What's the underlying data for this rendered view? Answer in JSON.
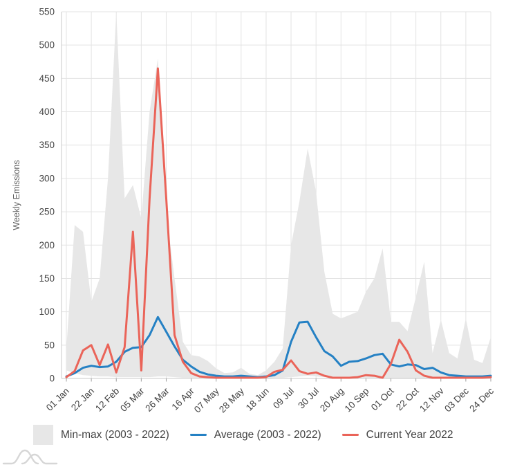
{
  "chart_data": {
    "type": "area",
    "title": "",
    "xlabel": "",
    "ylabel": "Weekly Emissions",
    "ylim": [
      0,
      550
    ],
    "y_ticks": [
      0,
      50,
      100,
      150,
      200,
      250,
      300,
      350,
      400,
      450,
      500,
      550
    ],
    "x_tick_labels": [
      "01 Jan",
      "22 Jan",
      "12 Feb",
      "05 Mar",
      "26 Mar",
      "16 Apr",
      "07 May",
      "28 May",
      "18 Jun",
      "09 Jul",
      "30 Jul",
      "20 Aug",
      "10 Sep",
      "01 Oct",
      "22 Oct",
      "12 Nov",
      "03 Dec",
      "24 Dec"
    ],
    "x_tick_every_weeks": 3,
    "n_weeks": 52,
    "grid": true,
    "legend_position": "bottom",
    "series": [
      {
        "name": "Min-max (2003 - 2022)",
        "type": "band",
        "color": "#e7e7e7",
        "max": [
          45,
          230,
          220,
          115,
          150,
          300,
          550,
          270,
          290,
          240,
          400,
          480,
          250,
          150,
          55,
          35,
          33,
          26,
          15,
          8,
          9,
          16,
          7,
          5,
          12,
          25,
          45,
          200,
          265,
          345,
          280,
          160,
          97,
          90,
          95,
          100,
          130,
          150,
          195,
          85,
          85,
          71,
          122,
          175,
          38,
          88,
          38,
          30,
          90,
          28,
          23,
          62
        ],
        "min": [
          12,
          8,
          5,
          4,
          3,
          3,
          2,
          2,
          2,
          2,
          2,
          3,
          3,
          2,
          1,
          1,
          1,
          1,
          0,
          0,
          0,
          0,
          0,
          0,
          0,
          1,
          1,
          2,
          3,
          4,
          3,
          2,
          1,
          1,
          1,
          1,
          1,
          1,
          1,
          0,
          0,
          0,
          0,
          0,
          0,
          0,
          0,
          0,
          0,
          0,
          0,
          0
        ]
      },
      {
        "name": "Average (2003 - 2022)",
        "type": "line",
        "color": "#2581c4",
        "values": [
          3,
          8,
          16,
          19,
          17,
          18,
          25,
          40,
          46,
          47,
          65,
          92,
          70,
          48,
          28,
          18,
          10,
          6,
          4,
          3,
          3,
          4,
          3,
          2,
          3,
          5,
          12,
          55,
          84,
          85,
          62,
          41,
          33,
          19,
          25,
          26,
          30,
          35,
          37,
          21,
          18,
          21,
          20,
          14,
          16,
          9,
          5,
          4,
          3,
          3,
          3,
          4
        ]
      },
      {
        "name": "Current Year 2022",
        "type": "line",
        "color": "#ea6459",
        "values": [
          2,
          11,
          42,
          50,
          20,
          51,
          9,
          47,
          220,
          12,
          270,
          465,
          270,
          65,
          25,
          8,
          3,
          2,
          1,
          1,
          1,
          1,
          1,
          1,
          2,
          10,
          13,
          27,
          11,
          7,
          9,
          4,
          1,
          1,
          1,
          2,
          5,
          4,
          1,
          22,
          58,
          40,
          12,
          4,
          1,
          1,
          1,
          1,
          1,
          1,
          1,
          2
        ]
      }
    ],
    "style": {
      "grid_color": "#e3e3e3",
      "axis_color": "#c9c9c9",
      "tick_color": "#9e9e9e",
      "tick_label_color": "#424242",
      "ylabel_color": "#5f5f5f",
      "logo_color": "#d6d6d6"
    }
  }
}
